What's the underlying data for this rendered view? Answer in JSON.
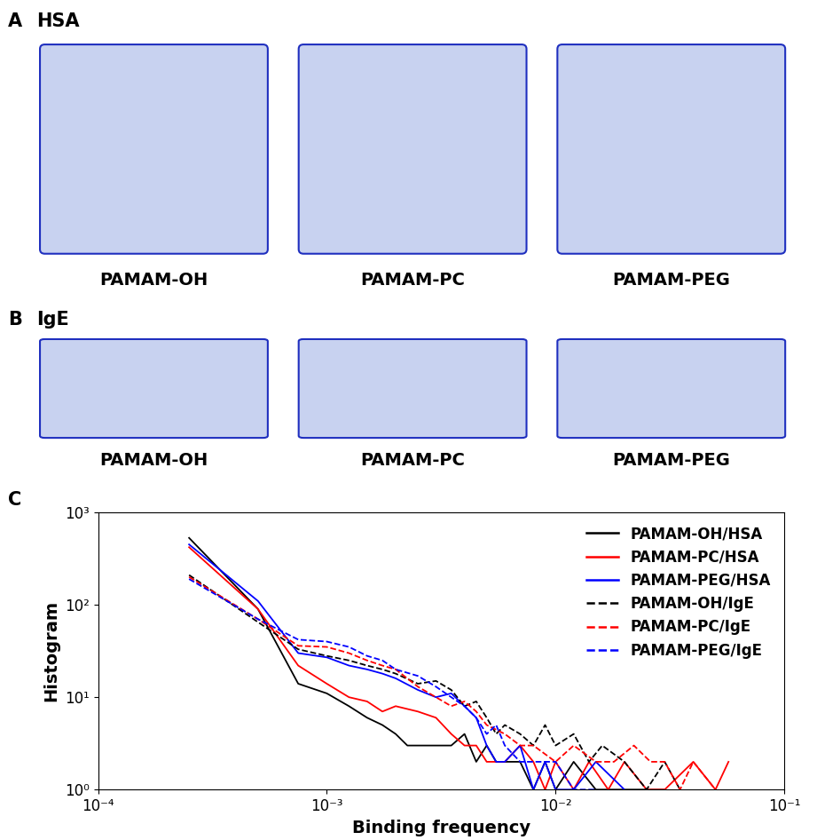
{
  "panels": [
    {
      "label": "A",
      "title": "HSA",
      "images": [
        "PAMAM-OH",
        "PAMAM-PC",
        "PAMAM-PEG"
      ]
    },
    {
      "label": "B",
      "title": "IgE",
      "images": [
        "PAMAM-OH",
        "PAMAM-PC",
        "PAMAM-PEG"
      ]
    }
  ],
  "chart_data": {
    "type": "line",
    "title": "C",
    "x_label": "Binding frequency",
    "y_label": "Histogram",
    "log": true,
    "legend": "upper right",
    "xlim": [
      0.0001,
      0.1
    ],
    "ylim": [
      1,
      1000
    ],
    "xticks": [
      {
        "value": 0.0001,
        "label": "10⁻⁴"
      },
      {
        "value": 0.001,
        "label": "10⁻³"
      },
      {
        "value": 0.01,
        "label": "10⁻²"
      },
      {
        "value": 0.1,
        "label": "10⁻¹"
      }
    ],
    "yticks": [
      {
        "value": 1,
        "label": "10⁰"
      },
      {
        "value": 10,
        "label": "10¹"
      },
      {
        "value": 100,
        "label": "10²"
      },
      {
        "value": 1000,
        "label": "10³"
      }
    ],
    "series": [
      {
        "name": "PAMAM-OH/HSA",
        "color": "#000000",
        "line_style": "solid",
        "x": [
          0.00025,
          0.0005,
          0.00075,
          0.001,
          0.00125,
          0.0015,
          0.00175,
          0.002,
          0.00225,
          0.0025,
          0.00275,
          0.003,
          0.0035,
          0.004,
          0.0045,
          0.005,
          0.0055,
          0.006,
          0.007,
          0.008,
          0.009,
          0.01,
          0.012,
          0.015,
          0.02,
          0.025,
          0.03
        ],
        "values": [
          530,
          90,
          14,
          11,
          8,
          6,
          5,
          4,
          3,
          3,
          3,
          3,
          3,
          4,
          2,
          3,
          2,
          2,
          2,
          1,
          2,
          1,
          2,
          1,
          1,
          1,
          1
        ]
      },
      {
        "name": "PAMAM-PC/HSA",
        "color": "#ff0000",
        "line_style": "solid",
        "x": [
          0.00025,
          0.0005,
          0.00075,
          0.001,
          0.00125,
          0.0015,
          0.00175,
          0.002,
          0.0025,
          0.003,
          0.0035,
          0.004,
          0.0045,
          0.005,
          0.006,
          0.007,
          0.008,
          0.009,
          0.01,
          0.012,
          0.014,
          0.017,
          0.02,
          0.025,
          0.03,
          0.04,
          0.05,
          0.057
        ],
        "values": [
          420,
          90,
          22,
          14,
          10,
          9,
          7,
          8,
          7,
          6,
          4,
          3,
          3,
          2,
          2,
          3,
          2,
          1,
          2,
          1,
          2,
          1,
          2,
          1,
          1,
          2,
          1,
          2
        ]
      },
      {
        "name": "PAMAM-PEG/HSA",
        "color": "#0000ff",
        "line_style": "solid",
        "x": [
          0.00025,
          0.0005,
          0.00075,
          0.001,
          0.00125,
          0.0015,
          0.00175,
          0.002,
          0.0025,
          0.003,
          0.0035,
          0.004,
          0.0045,
          0.005,
          0.0055,
          0.006,
          0.007,
          0.008,
          0.009,
          0.01,
          0.012,
          0.015,
          0.02
        ],
        "values": [
          450,
          110,
          30,
          27,
          22,
          20,
          18,
          16,
          12,
          10,
          11,
          8,
          6,
          3,
          2,
          2,
          3,
          1,
          2,
          1,
          1,
          2,
          1
        ]
      },
      {
        "name": "PAMAM-OH/IgE",
        "color": "#000000",
        "line_style": "dashed",
        "x": [
          0.00025,
          0.0005,
          0.00075,
          0.001,
          0.00125,
          0.0015,
          0.00175,
          0.002,
          0.0025,
          0.003,
          0.0035,
          0.004,
          0.0045,
          0.005,
          0.0055,
          0.006,
          0.007,
          0.008,
          0.009,
          0.01,
          0.012,
          0.014,
          0.016,
          0.02,
          0.025,
          0.03,
          0.035
        ],
        "values": [
          210,
          65,
          33,
          28,
          25,
          22,
          20,
          18,
          14,
          15,
          12,
          8,
          9,
          6,
          4,
          5,
          4,
          3,
          5,
          3,
          4,
          2,
          3,
          2,
          1,
          2,
          1
        ]
      },
      {
        "name": "PAMAM-PC/IgE",
        "color": "#ff0000",
        "line_style": "dashed",
        "x": [
          0.00025,
          0.0005,
          0.00075,
          0.001,
          0.00125,
          0.0015,
          0.00175,
          0.002,
          0.0025,
          0.003,
          0.0035,
          0.004,
          0.0045,
          0.005,
          0.006,
          0.007,
          0.008,
          0.01,
          0.012,
          0.015,
          0.018,
          0.022,
          0.026,
          0.03,
          0.035,
          0.04,
          0.05
        ],
        "values": [
          200,
          70,
          36,
          35,
          30,
          25,
          22,
          20,
          13,
          10,
          8,
          9,
          7,
          5,
          4,
          3,
          3,
          2,
          3,
          2,
          2,
          3,
          2,
          2,
          1,
          2,
          1
        ]
      },
      {
        "name": "PAMAM-PEG/IgE",
        "color": "#0000ff",
        "line_style": "dashed",
        "x": [
          0.00025,
          0.0005,
          0.00075,
          0.001,
          0.00125,
          0.0015,
          0.00175,
          0.002,
          0.0025,
          0.003,
          0.0035,
          0.004,
          0.0045,
          0.005,
          0.0055,
          0.006,
          0.007,
          0.008,
          0.01,
          0.012,
          0.015
        ],
        "values": [
          190,
          70,
          42,
          40,
          35,
          28,
          25,
          20,
          17,
          13,
          10,
          8,
          6,
          4,
          5,
          3,
          2,
          2,
          2,
          1,
          1
        ]
      }
    ]
  }
}
